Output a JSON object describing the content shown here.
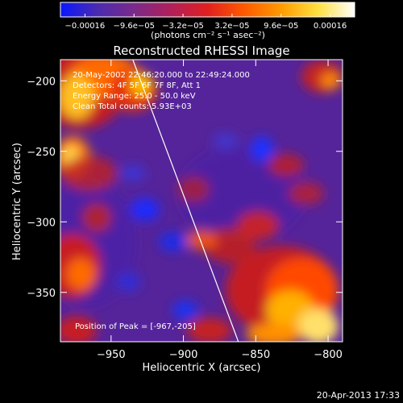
{
  "colorbar": {
    "tick_labels": [
      "−0.00016",
      "−9.6e−05",
      "−3.2e−05",
      "3.2e−05",
      "9.6e−05",
      "0.00016"
    ],
    "unit_label": "(photons cm⁻² s⁻¹ asec⁻²)",
    "colors": [
      "#0a17ff",
      "#4a2bb0",
      "#7a2a8a",
      "#b0205a",
      "#e02020",
      "#ff5a00",
      "#ff9b00",
      "#ffe040",
      "#ffffff"
    ]
  },
  "chart_data": {
    "type": "heatmap",
    "title": "Reconstructed RHESSI Image",
    "xlabel": "Heliocentric X (arcsec)",
    "ylabel": "Heliocentric Y (arcsec)",
    "xlim": [
      -985,
      -790
    ],
    "ylim": [
      -385,
      -185
    ],
    "x_ticks": [
      -950,
      -900,
      -850,
      -800
    ],
    "y_ticks": [
      -200,
      -250,
      -300,
      -350
    ],
    "x_tick_labels": [
      "−950",
      "−900",
      "−850",
      "−800"
    ],
    "y_tick_labels": [
      "−200",
      "−250",
      "−300",
      "−350"
    ],
    "annotations": [
      "20-May-2002 22:46:20.000 to 22:49:24.000",
      "Detectors: 4F 5F 6F 7F 8F, Att 1",
      "Energy Range: 25.0 - 50.0 keV",
      "Clean     Total counts: 5.93E+03"
    ],
    "peak_label": "Position of Peak = [-967,-205]",
    "peak": [
      -967,
      -205
    ],
    "limb_line": [
      [
        -935,
        -185
      ],
      [
        -862,
        -385
      ]
    ]
  },
  "footer": {
    "timestamp": "20-Apr-2013 17:33"
  }
}
